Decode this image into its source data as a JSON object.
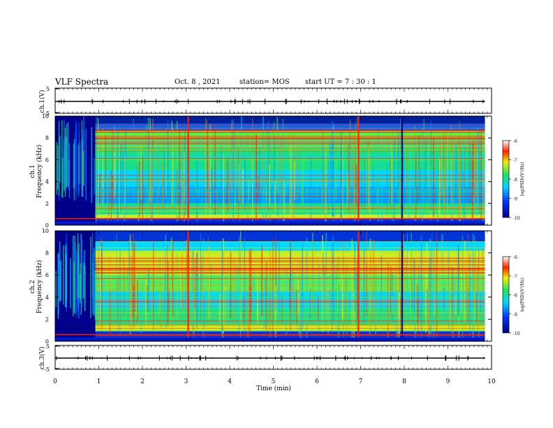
{
  "header": {
    "title": "VLF Spectra",
    "date": "Oct. 8  , 2021",
    "station": "station= MOS",
    "start": "start  UT  =   7 : 30 : 1"
  },
  "panels": {
    "ch1_waveform_ylabel": "ch.1(V)",
    "ch1_spec_ylabel1": "ch.1",
    "ch1_spec_ylabel2": "Frequency (kHz)",
    "ch2_spec_ylabel1": "ch.2",
    "ch2_spec_ylabel2": "Frequency (kHz)",
    "ch3_waveform_ylabel": "ch.3(V)"
  },
  "colorbar": {
    "label": "log(PSD)(V²/Hz)",
    "ticks": [
      "-6",
      "-7",
      "-8",
      "-9",
      "-10"
    ]
  },
  "colors": {
    "dark_blue": "#00008a",
    "blue": "#0030ff",
    "cyan": "#00d8ff",
    "green": "#20e060",
    "yellow": "#f0f000",
    "red": "#ff2000"
  },
  "chart_data": [
    {
      "type": "line",
      "panel": "ch1-waveform",
      "ylabel": "ch.1(V)",
      "ylim": [
        -5,
        5
      ],
      "yticks": [
        "5",
        "-5"
      ],
      "xlim": [
        0,
        10
      ]
    },
    {
      "type": "heatmap",
      "panel": "ch1-spectrogram",
      "ylabel": "ch.1 Frequency (kHz)",
      "xlim": [
        0,
        10
      ],
      "ylim": [
        0,
        10
      ],
      "yticks": [
        "0",
        "2",
        "4",
        "6",
        "8",
        "10"
      ],
      "data_end_min": 9.85,
      "transition_min": 0.92,
      "colorbar_range": [
        -10,
        -6
      ]
    },
    {
      "type": "heatmap",
      "panel": "ch2-spectrogram",
      "ylabel": "ch.2 Frequency (kHz)",
      "xlim": [
        0,
        10
      ],
      "ylim": [
        0,
        10
      ],
      "yticks": [
        "0",
        "2",
        "4",
        "6",
        "8",
        "10"
      ],
      "data_end_min": 9.85,
      "transition_min": 0.92,
      "colorbar_range": [
        -10,
        -6
      ]
    },
    {
      "type": "line",
      "panel": "ch3-waveform",
      "ylabel": "ch.3(V)",
      "ylim": [
        -5,
        5
      ],
      "yticks": [
        "5",
        "-5"
      ],
      "xlim": [
        0,
        10
      ],
      "xlabel": "Time  (min)",
      "xticks": [
        "0",
        "1",
        "2",
        "3",
        "4",
        "5",
        "6",
        "7",
        "8",
        "9",
        "10"
      ]
    }
  ]
}
